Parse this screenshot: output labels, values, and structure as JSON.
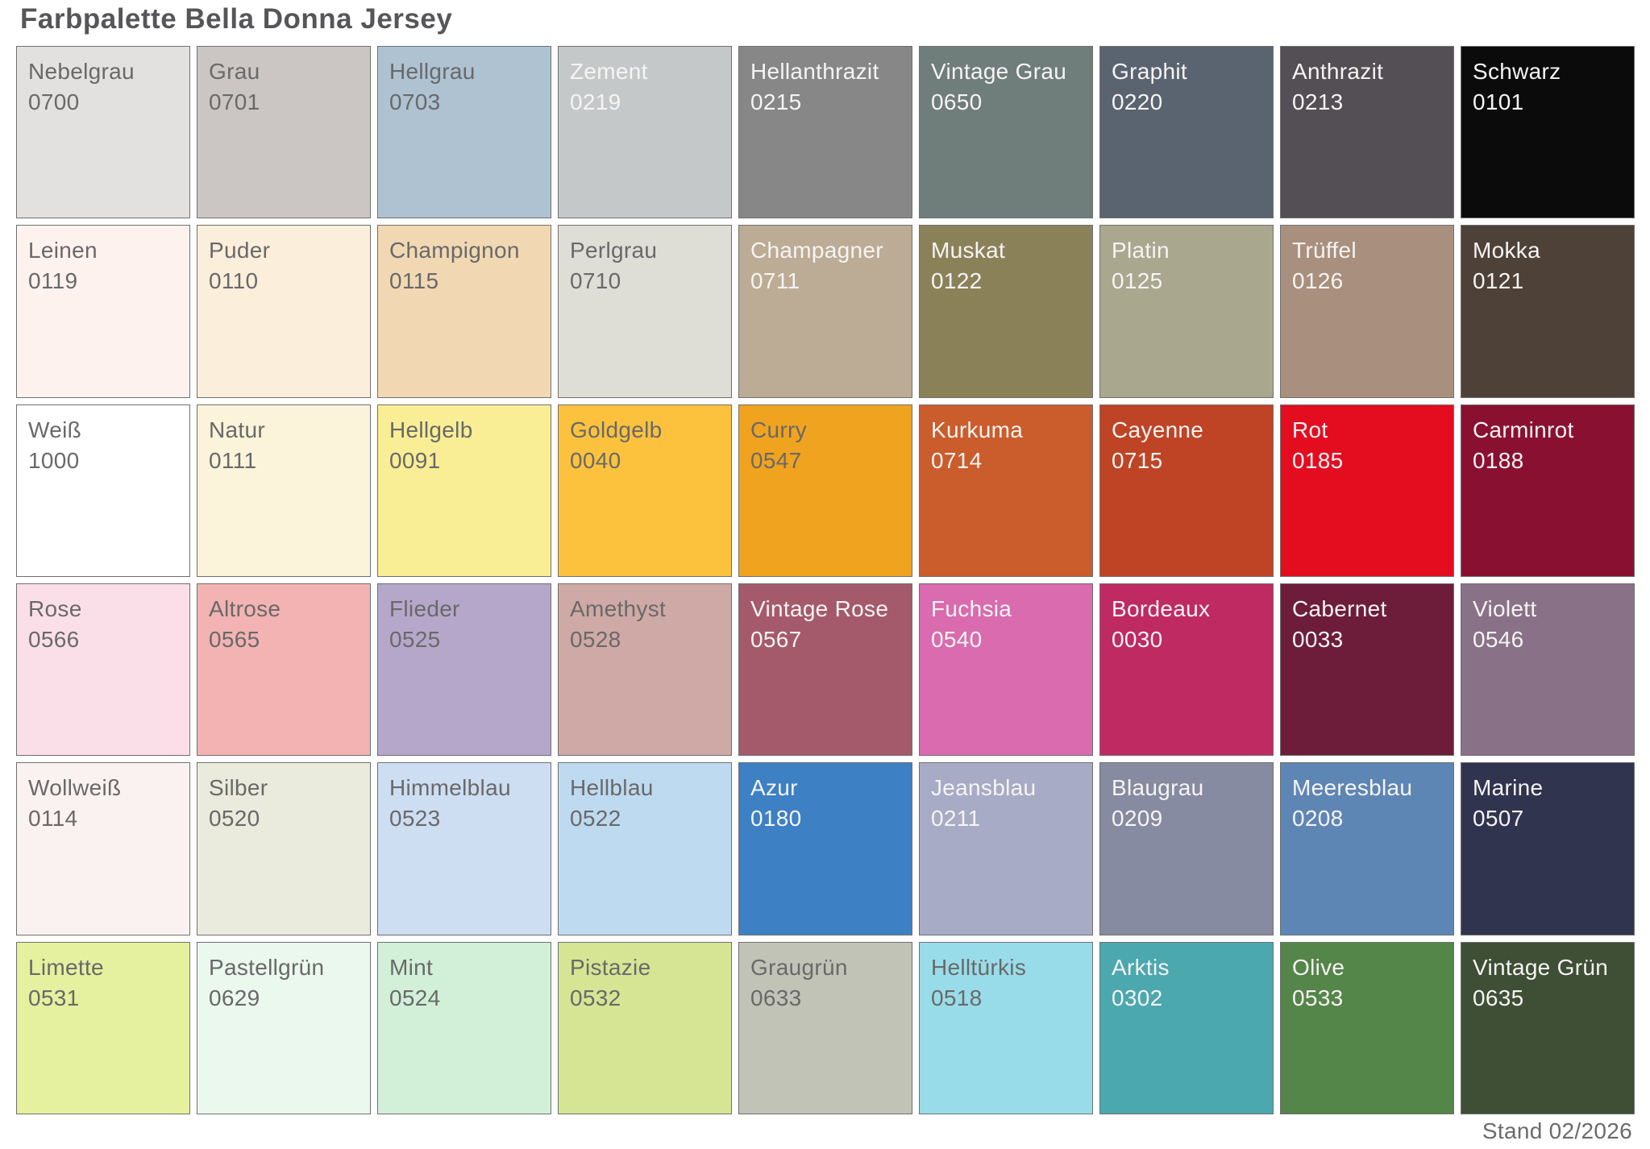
{
  "title": "Farbpalette Bella Donna Jersey",
  "footer": "Stand 02/2026",
  "chart_data": {
    "type": "table",
    "title": "Farbpalette Bella Donna Jersey",
    "footer": "Stand 02/2026",
    "columns": 9,
    "rows": 6,
    "text_colors": {
      "dark": "#696969",
      "light": "#f6f4f3"
    },
    "swatches": [
      {
        "name": "Nebelgrau",
        "code": "0700",
        "hex": "#e3e1df",
        "text": "dark"
      },
      {
        "name": "Grau",
        "code": "0701",
        "hex": "#cbc6c4",
        "text": "dark"
      },
      {
        "name": "Hellgrau",
        "code": "0703",
        "hex": "#aec2d2",
        "text": "dark"
      },
      {
        "name": "Zement",
        "code": "0219",
        "hex": "#c5c8c9",
        "text": "light"
      },
      {
        "name": "Hellanthrazit",
        "code": "0215",
        "hex": "#878788",
        "text": "light"
      },
      {
        "name": "Vintage Grau",
        "code": "0650",
        "hex": "#6f7d7b",
        "text": "light"
      },
      {
        "name": "Graphit",
        "code": "0220",
        "hex": "#5a6470",
        "text": "light"
      },
      {
        "name": "Anthrazit",
        "code": "0213",
        "hex": "#534f54",
        "text": "light"
      },
      {
        "name": "Schwarz",
        "code": "0101",
        "hex": "#0b0b0b",
        "text": "light"
      },
      {
        "name": "Leinen",
        "code": "0119",
        "hex": "#fdf2ee",
        "text": "dark"
      },
      {
        "name": "Puder",
        "code": "0110",
        "hex": "#fbeeda",
        "text": "dark"
      },
      {
        "name": "Champignon",
        "code": "0115",
        "hex": "#f1d8b3",
        "text": "dark"
      },
      {
        "name": "Perlgrau",
        "code": "0710",
        "hex": "#dfded6",
        "text": "dark"
      },
      {
        "name": "Champagner",
        "code": "0711",
        "hex": "#bcac95",
        "text": "light"
      },
      {
        "name": "Muskat",
        "code": "0122",
        "hex": "#8b8159",
        "text": "light"
      },
      {
        "name": "Platin",
        "code": "0125",
        "hex": "#a9a78e",
        "text": "light"
      },
      {
        "name": "Trüffel",
        "code": "0126",
        "hex": "#a98f7d",
        "text": "light"
      },
      {
        "name": "Mokka",
        "code": "0121",
        "hex": "#4e4138",
        "text": "light"
      },
      {
        "name": "Weiß",
        "code": "1000",
        "hex": "#ffffff",
        "text": "dark"
      },
      {
        "name": "Natur",
        "code": "0111",
        "hex": "#fbf3da",
        "text": "dark"
      },
      {
        "name": "Hellgelb",
        "code": "0091",
        "hex": "#f9ee95",
        "text": "dark"
      },
      {
        "name": "Goldgelb",
        "code": "0040",
        "hex": "#fcc23e",
        "text": "dark"
      },
      {
        "name": "Curry",
        "code": "0547",
        "hex": "#f0a31e",
        "text": "dark"
      },
      {
        "name": "Kurkuma",
        "code": "0714",
        "hex": "#cb5c2b",
        "text": "light"
      },
      {
        "name": "Cayenne",
        "code": "0715",
        "hex": "#bf4425",
        "text": "light"
      },
      {
        "name": "Rot",
        "code": "0185",
        "hex": "#e40d20",
        "text": "light"
      },
      {
        "name": "Carminrot",
        "code": "0188",
        "hex": "#8a1031",
        "text": "light"
      },
      {
        "name": "Rose",
        "code": "0566",
        "hex": "#fbdfe8",
        "text": "dark"
      },
      {
        "name": "Altrose",
        "code": "0565",
        "hex": "#f2b3b2",
        "text": "dark"
      },
      {
        "name": "Flieder",
        "code": "0525",
        "hex": "#b5a7ca",
        "text": "dark"
      },
      {
        "name": "Amethyst",
        "code": "0528",
        "hex": "#cfa9a5",
        "text": "dark"
      },
      {
        "name": "Vintage Rose",
        "code": "0567",
        "hex": "#a55a6c",
        "text": "light"
      },
      {
        "name": "Fuchsia",
        "code": "0540",
        "hex": "#d96bae",
        "text": "light"
      },
      {
        "name": "Bordeaux",
        "code": "0030",
        "hex": "#bf2a62",
        "text": "light"
      },
      {
        "name": "Cabernet",
        "code": "0033",
        "hex": "#6d1d39",
        "text": "light"
      },
      {
        "name": "Violett",
        "code": "0546",
        "hex": "#897288",
        "text": "light"
      },
      {
        "name": "Wollweiß",
        "code": "0114",
        "hex": "#faf2f0",
        "text": "dark"
      },
      {
        "name": "Silber",
        "code": "0520",
        "hex": "#eaebdc",
        "text": "dark"
      },
      {
        "name": "Himmelblau",
        "code": "0523",
        "hex": "#cdddf2",
        "text": "dark"
      },
      {
        "name": "Hellblau",
        "code": "0522",
        "hex": "#bedaf0",
        "text": "dark"
      },
      {
        "name": "Azur",
        "code": "0180",
        "hex": "#3d80c4",
        "text": "light"
      },
      {
        "name": "Jeansblau",
        "code": "0211",
        "hex": "#a7abc5",
        "text": "light"
      },
      {
        "name": "Blaugrau",
        "code": "0209",
        "hex": "#868ba1",
        "text": "light"
      },
      {
        "name": "Meeresblau",
        "code": "0208",
        "hex": "#5e86b5",
        "text": "light"
      },
      {
        "name": "Marine",
        "code": "0507",
        "hex": "#31344f",
        "text": "light"
      },
      {
        "name": "Limette",
        "code": "0531",
        "hex": "#e5f19f",
        "text": "dark"
      },
      {
        "name": "Pastellgrün",
        "code": "0629",
        "hex": "#ebf8ed",
        "text": "dark"
      },
      {
        "name": "Mint",
        "code": "0524",
        "hex": "#d2f0d8",
        "text": "dark"
      },
      {
        "name": "Pistazie",
        "code": "0532",
        "hex": "#d5e594",
        "text": "dark"
      },
      {
        "name": "Graugrün",
        "code": "0633",
        "hex": "#c1c3b7",
        "text": "dark"
      },
      {
        "name": "Helltürkis",
        "code": "0518",
        "hex": "#99dce9",
        "text": "dark"
      },
      {
        "name": "Arktis",
        "code": "0302",
        "hex": "#4ba8ae",
        "text": "light"
      },
      {
        "name": "Olive",
        "code": "0533",
        "hex": "#548549",
        "text": "light"
      },
      {
        "name": "Vintage Grün",
        "code": "0635",
        "hex": "#3e4f35",
        "text": "light"
      }
    ]
  }
}
